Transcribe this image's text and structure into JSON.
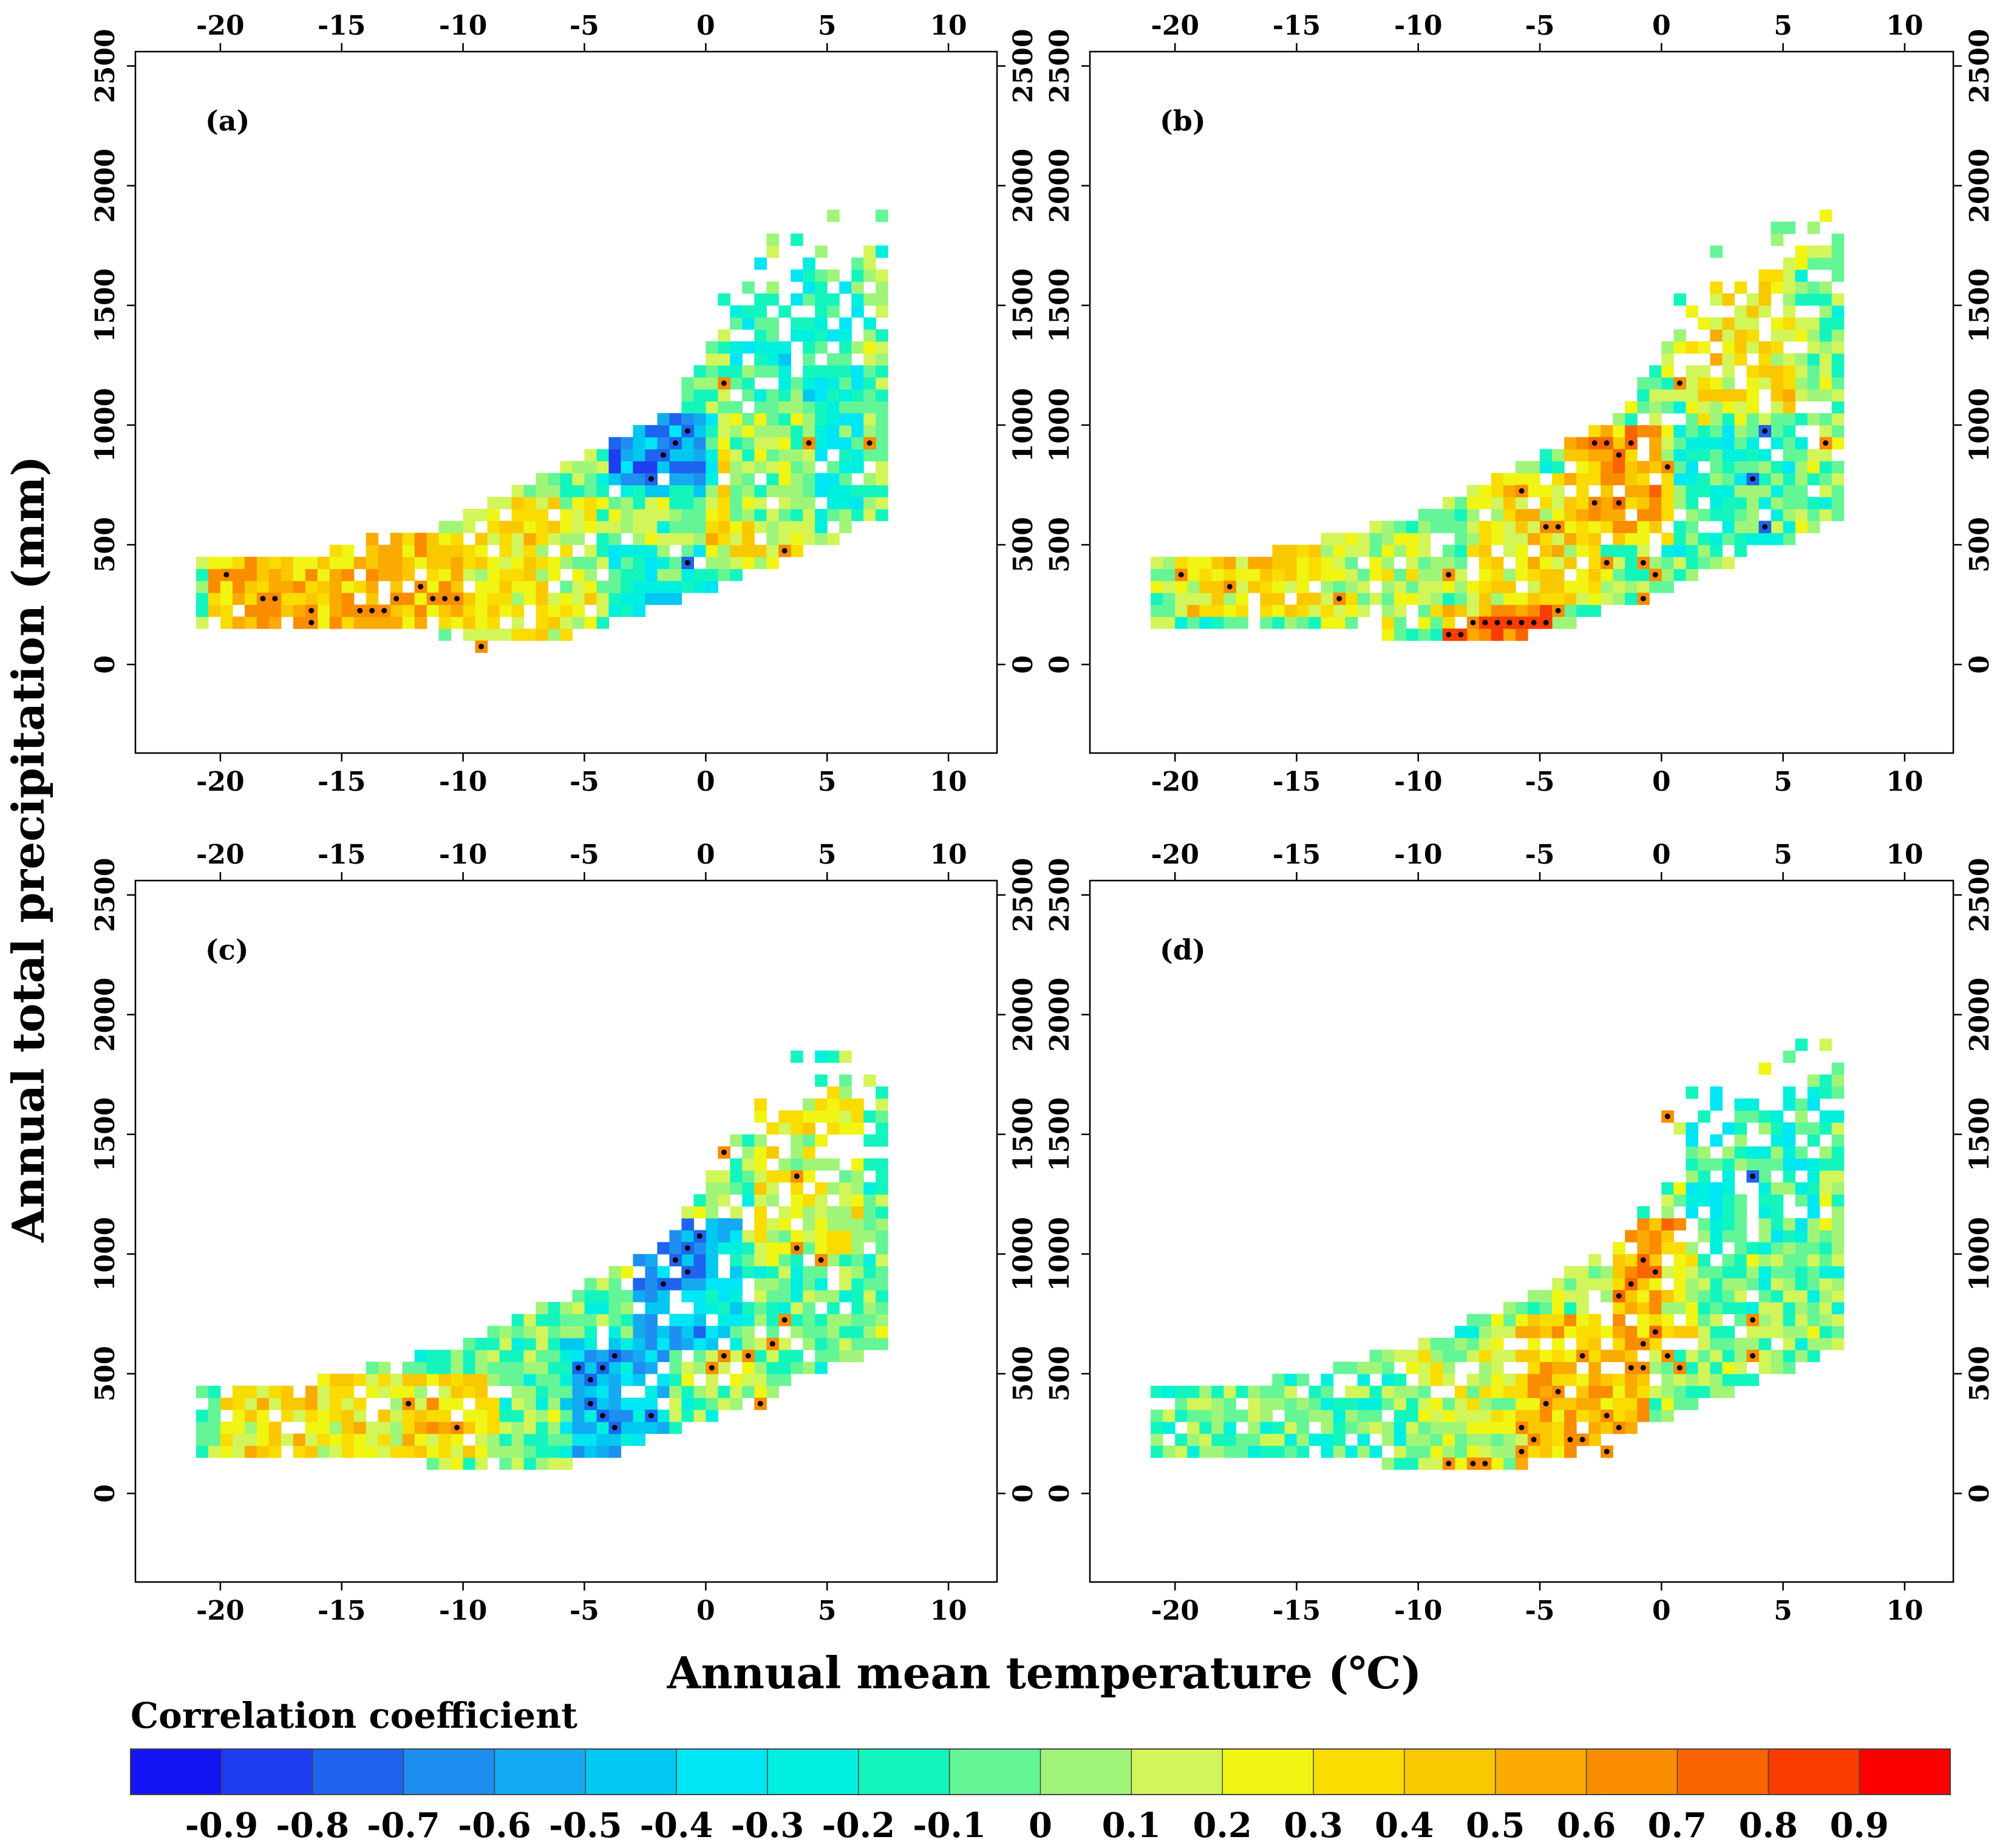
{
  "chart_data": {
    "type": "heatmap",
    "xlabel": "Annual mean temperature (℃)",
    "ylabel": "Annual total precipitation (mm)",
    "xlim": [
      -23.5,
      12
    ],
    "ylim": [
      -370,
      2560
    ],
    "xticks": [
      -20,
      -15,
      -10,
      -5,
      0,
      5,
      10
    ],
    "yticks": [
      0,
      500,
      1000,
      1500,
      2000,
      2500
    ],
    "bin_width_temp": 0.5,
    "bin_height_precip": 50,
    "colorbar": {
      "title": "Correlation coefficient",
      "range": [
        -1.0,
        1.0
      ],
      "step": 0.1,
      "tick_labels": [
        "-0.9",
        "-0.8",
        "-0.7",
        "-0.6",
        "-0.5",
        "-0.4",
        "-0.3",
        "-0.2",
        "-0.1",
        "0",
        "0.1",
        "0.2",
        "0.3",
        "0.4",
        "0.5",
        "0.6",
        "0.7",
        "0.8",
        "0.9"
      ],
      "colors": [
        "#1414f5",
        "#1e3cf0",
        "#1e64ee",
        "#1e8ff0",
        "#14aaf2",
        "#00c8f0",
        "#00e6f5",
        "#00f0e0",
        "#14f5be",
        "#64f596",
        "#a0f578",
        "#d2f55a",
        "#f0f514",
        "#fadc00",
        "#fac800",
        "#faaa00",
        "#fa8c00",
        "#fa6400",
        "#fa3c00",
        "#fa0000"
      ]
    },
    "significance_marker": "black dot = significant correlation",
    "panels": [
      {
        "label": "(a)",
        "regions": [
          {
            "t": [
              -20.5,
              -10
            ],
            "p": [
              150,
              500
            ],
            "value": 0.45
          },
          {
            "t": [
              -20,
              -13
            ],
            "p": [
              150,
              400
            ],
            "value": 0.5
          },
          {
            "t": [
              -10,
              -5
            ],
            "p": [
              50,
              650
            ],
            "value": 0.3
          },
          {
            "t": [
              -6,
              -1
            ],
            "p": [
              300,
              700
            ],
            "value": 0.0
          },
          {
            "t": [
              -4,
              0
            ],
            "p": [
              700,
              1000
            ],
            "value": -0.6
          },
          {
            "t": [
              -4,
              0
            ],
            "p": [
              100,
              450
            ],
            "value": -0.3
          },
          {
            "t": [
              0,
              4
            ],
            "p": [
              400,
              1000
            ],
            "value": 0.3
          },
          {
            "t": [
              1,
              6
            ],
            "p": [
              600,
              1650
            ],
            "value": -0.2
          }
        ],
        "significant": [
          [
            -20,
            350
          ],
          [
            -18.5,
            250
          ],
          [
            -18,
            250
          ],
          [
            -16.5,
            200
          ],
          [
            -16.5,
            150
          ],
          [
            -14.5,
            200
          ],
          [
            -14,
            200
          ],
          [
            -13.5,
            200
          ],
          [
            -13,
            250
          ],
          [
            -12,
            300
          ],
          [
            -11.5,
            250
          ],
          [
            -11,
            250
          ],
          [
            -10.5,
            250
          ],
          [
            -9.5,
            50
          ],
          [
            -2.5,
            750
          ],
          [
            -2,
            850
          ],
          [
            -1.5,
            900
          ],
          [
            -1,
            950
          ],
          [
            -1,
            400
          ],
          [
            0.5,
            1150
          ],
          [
            3,
            450
          ],
          [
            4,
            900
          ],
          [
            6.5,
            900
          ]
        ]
      },
      {
        "label": "(b)",
        "regions": [
          {
            "t": [
              -20,
              -14
            ],
            "p": [
              200,
              450
            ],
            "value": 0.3
          },
          {
            "t": [
              -14,
              -8
            ],
            "p": [
              150,
              500
            ],
            "value": 0.1
          },
          {
            "t": [
              -9,
              -5
            ],
            "p": [
              50,
              200
            ],
            "value": 0.65
          },
          {
            "t": [
              -8,
              -3
            ],
            "p": [
              250,
              750
            ],
            "value": 0.3
          },
          {
            "t": [
              -4,
              0
            ],
            "p": [
              500,
              950
            ],
            "value": 0.5
          },
          {
            "t": [
              0,
              5
            ],
            "p": [
              300,
              1000
            ],
            "value": -0.1
          },
          {
            "t": [
              1,
              5
            ],
            "p": [
              1000,
              1650
            ],
            "value": 0.3
          }
        ],
        "significant": [
          [
            -20,
            350
          ],
          [
            -18,
            300
          ],
          [
            -13.5,
            250
          ],
          [
            -9,
            350
          ],
          [
            -9,
            100
          ],
          [
            -8.5,
            100
          ],
          [
            -8,
            150
          ],
          [
            -7.5,
            150
          ],
          [
            -7,
            150
          ],
          [
            -6.5,
            150
          ],
          [
            -6,
            150
          ],
          [
            -5.5,
            150
          ],
          [
            -5,
            150
          ],
          [
            -4.5,
            200
          ],
          [
            -6,
            700
          ],
          [
            -5,
            550
          ],
          [
            -4.5,
            550
          ],
          [
            -3,
            900
          ],
          [
            -2.5,
            900
          ],
          [
            -2,
            850
          ],
          [
            -1.5,
            900
          ],
          [
            -3,
            650
          ],
          [
            -2,
            650
          ],
          [
            -2.5,
            400
          ],
          [
            -1,
            400
          ],
          [
            -1,
            250
          ],
          [
            -0.5,
            350
          ],
          [
            0,
            800
          ],
          [
            0.5,
            1150
          ],
          [
            3.5,
            750
          ],
          [
            4,
            950
          ],
          [
            4,
            550
          ],
          [
            6.5,
            900
          ]
        ]
      },
      {
        "label": "(c)",
        "regions": [
          {
            "t": [
              -20,
              -9
            ],
            "p": [
              150,
              450
            ],
            "value": 0.3
          },
          {
            "t": [
              -12,
              -10
            ],
            "p": [
              250,
              350
            ],
            "value": 0.5
          },
          {
            "t": [
              -9,
              -6
            ],
            "p": [
              100,
              600
            ],
            "value": 0.0
          },
          {
            "t": [
              -6,
              -2
            ],
            "p": [
              150,
              600
            ],
            "value": -0.45
          },
          {
            "t": [
              -3,
              1
            ],
            "p": [
              600,
              1100
            ],
            "value": -0.55
          },
          {
            "t": [
              0,
              5
            ],
            "p": [
              450,
              1000
            ],
            "value": 0.0
          },
          {
            "t": [
              2,
              6
            ],
            "p": [
              1000,
              1650
            ],
            "value": 0.2
          }
        ],
        "significant": [
          [
            -12.5,
            350
          ],
          [
            -10.5,
            250
          ],
          [
            -5.5,
            500
          ],
          [
            -5,
            450
          ],
          [
            -5,
            350
          ],
          [
            -4.5,
            500
          ],
          [
            -4.5,
            300
          ],
          [
            -4,
            250
          ],
          [
            -4,
            550
          ],
          [
            -2.5,
            300
          ],
          [
            -2,
            850
          ],
          [
            -1.5,
            950
          ],
          [
            -1,
            900
          ],
          [
            -0.5,
            1050
          ],
          [
            -1,
            1000
          ],
          [
            0,
            500
          ],
          [
            0.5,
            550
          ],
          [
            1.5,
            550
          ],
          [
            2,
            350
          ],
          [
            2.5,
            600
          ],
          [
            3,
            700
          ],
          [
            3.5,
            1000
          ],
          [
            3.5,
            1300
          ],
          [
            4.5,
            950
          ],
          [
            0.5,
            1400
          ]
        ]
      },
      {
        "label": "(d)",
        "regions": [
          {
            "t": [
              -21,
              -10
            ],
            "p": [
              150,
              450
            ],
            "value": -0.05
          },
          {
            "t": [
              -10,
              -6
            ],
            "p": [
              50,
              600
            ],
            "value": 0.15
          },
          {
            "t": [
              -6,
              -1
            ],
            "p": [
              100,
              700
            ],
            "value": 0.45
          },
          {
            "t": [
              -2,
              1
            ],
            "p": [
              600,
              1100
            ],
            "value": 0.5
          },
          {
            "t": [
              0,
              6
            ],
            "p": [
              300,
              1000
            ],
            "value": 0.0
          },
          {
            "t": [
              1,
              6
            ],
            "p": [
              1000,
              1650
            ],
            "value": -0.15
          }
        ],
        "significant": [
          [
            -9,
            100
          ],
          [
            -8,
            100
          ],
          [
            -7.5,
            100
          ],
          [
            -6,
            150
          ],
          [
            -6,
            250
          ],
          [
            -5.5,
            200
          ],
          [
            -5,
            350
          ],
          [
            -4.5,
            400
          ],
          [
            -4,
            200
          ],
          [
            -3.5,
            200
          ],
          [
            -2.5,
            150
          ],
          [
            -3.5,
            550
          ],
          [
            -2.5,
            300
          ],
          [
            -2,
            250
          ],
          [
            -1.5,
            500
          ],
          [
            -1,
            500
          ],
          [
            -1,
            600
          ],
          [
            -0.5,
            650
          ],
          [
            0,
            550
          ],
          [
            0.5,
            500
          ],
          [
            -2,
            800
          ],
          [
            -1.5,
            850
          ],
          [
            -1,
            950
          ],
          [
            -0.5,
            900
          ],
          [
            0,
            1550
          ],
          [
            3.5,
            1300
          ],
          [
            3.5,
            700
          ],
          [
            3.5,
            550
          ]
        ]
      }
    ]
  }
}
